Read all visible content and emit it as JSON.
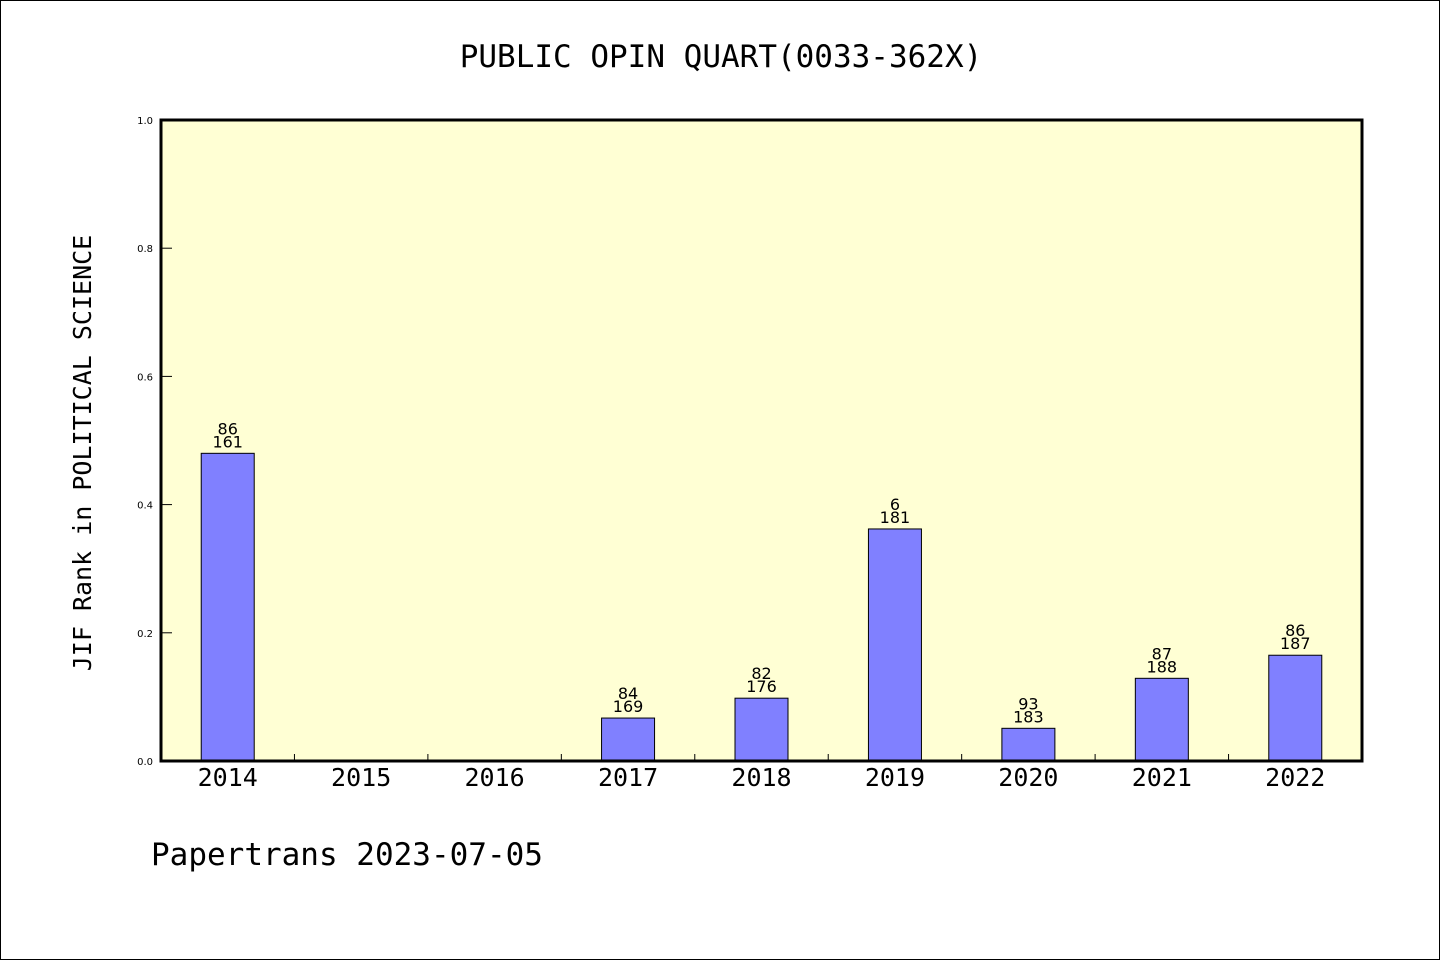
{
  "chart_data": {
    "type": "bar",
    "title": "PUBLIC OPIN QUART(0033-362X)",
    "ylabel": "JIF Rank in POLITICAL SCIENCE",
    "xlabel": "",
    "categories": [
      "2014",
      "2015",
      "2016",
      "2017",
      "2018",
      "2019",
      "2020",
      "2021",
      "2022"
    ],
    "values": [
      0.48,
      null,
      null,
      0.067,
      0.098,
      0.362,
      0.051,
      0.129,
      0.165
    ],
    "label_top": [
      "86",
      "",
      "",
      "84",
      "82",
      "6",
      "93",
      "87",
      "86"
    ],
    "label_bottom": [
      "161",
      "",
      "",
      "169",
      "176",
      "181",
      "183",
      "188",
      "187"
    ],
    "ylim": [
      0,
      1.0
    ],
    "yticks": [
      "0.0",
      "0.2",
      "0.4",
      "0.6",
      "0.8",
      "1.0"
    ],
    "grid": false,
    "plot_background": "#ffffd4",
    "bar_color": "#8080ff"
  },
  "footer": {
    "text": "Papertrans 2023-07-05"
  }
}
